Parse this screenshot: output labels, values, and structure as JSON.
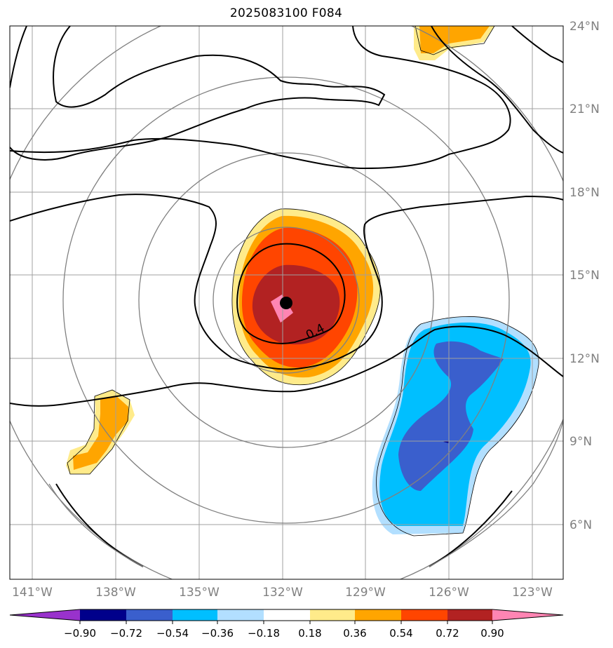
{
  "title": "2025083100 F084",
  "axes": {
    "lon_labels": [
      "141°W",
      "138°W",
      "135°W",
      "132°W",
      "129°W",
      "126°W",
      "123°W"
    ],
    "lat_labels": [
      "24°N",
      "21°N",
      "18°N",
      "15°N",
      "12°N",
      "9°N",
      "6°N"
    ]
  },
  "contour_label": "0.4",
  "colorbar": {
    "colors": [
      "#9932cc",
      "#00008b",
      "#3a5fcd",
      "#00bfff",
      "#b2dfff",
      "#ffffff",
      "#ffeb8a",
      "#ffa500",
      "#ff4500",
      "#b22222",
      "#ff85b3"
    ],
    "tick_labels": [
      "−0.90",
      "−0.72",
      "−0.54",
      "−0.36",
      "−0.18",
      "0.18",
      "0.36",
      "0.54",
      "0.72",
      "0.90"
    ]
  },
  "colors": {
    "grid": "#a0a0a0",
    "range_rings": "#808080",
    "contour": "#000000",
    "axis_labels": "#808080"
  }
}
